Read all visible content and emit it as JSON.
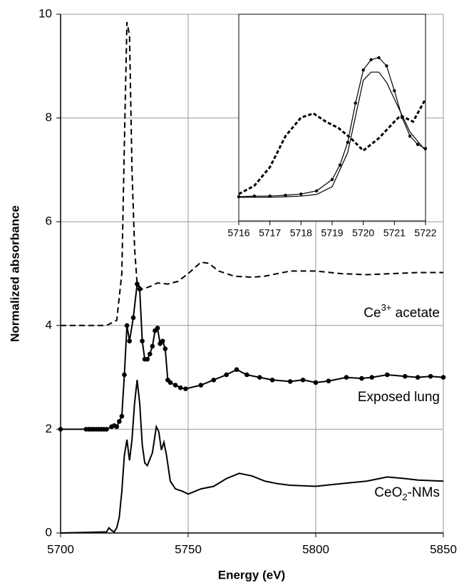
{
  "chart_data": [
    {
      "type": "line",
      "xlabel": "Energy (eV)",
      "ylabel": "Normalized absorbance",
      "xlim": [
        5700,
        5850
      ],
      "xticks": [
        5700,
        5750,
        5800,
        5850
      ],
      "ylim": [
        0,
        10
      ],
      "yticks": [
        0,
        2,
        4,
        6,
        8,
        10
      ],
      "grid": true,
      "series": [
        {
          "label": [
            "Ce",
            "3+",
            " acetate"
          ],
          "label_shift": "sup",
          "color": "#000000",
          "dashed": true,
          "markers": false,
          "x": [
            5700,
            5710,
            5718,
            5720,
            5722,
            5724,
            5725,
            5726,
            5727,
            5728,
            5729,
            5730,
            5732,
            5735,
            5738,
            5742,
            5746,
            5750,
            5755,
            5758,
            5762,
            5768,
            5775,
            5780,
            5790,
            5800,
            5810,
            5820,
            5830,
            5840,
            5850
          ],
          "values": [
            4.0,
            4.0,
            4.0,
            4.05,
            4.1,
            5.0,
            7.5,
            9.85,
            9.6,
            7.0,
            5.5,
            4.8,
            4.7,
            4.75,
            4.82,
            4.8,
            4.85,
            5.0,
            5.22,
            5.2,
            5.05,
            4.95,
            4.93,
            4.95,
            5.05,
            5.05,
            5.0,
            4.98,
            5.0,
            5.02,
            5.02
          ]
        },
        {
          "label": [
            "Exposed lung"
          ],
          "color": "#000000",
          "dashed": false,
          "markers": true,
          "x": [
            5700,
            5710,
            5711,
            5712,
            5713,
            5714,
            5715,
            5716,
            5717,
            5718,
            5720,
            5721,
            5722,
            5723,
            5724,
            5725,
            5726,
            5727,
            5728.5,
            5730,
            5731,
            5732,
            5733,
            5734,
            5735,
            5736,
            5737,
            5738,
            5739,
            5740,
            5741,
            5742,
            5743,
            5745,
            5747,
            5749,
            5755,
            5760,
            5765,
            5769,
            5773,
            5778,
            5783,
            5790,
            5795,
            5800,
            5805,
            5812,
            5818,
            5822,
            5828,
            5835,
            5840,
            5845,
            5850
          ],
          "values": [
            2.0,
            2.0,
            2.0,
            2.0,
            2.0,
            2.0,
            2.0,
            2.0,
            2.0,
            2.0,
            2.05,
            2.07,
            2.05,
            2.15,
            2.25,
            3.05,
            4.0,
            3.7,
            4.15,
            4.8,
            4.7,
            3.7,
            3.35,
            3.35,
            3.45,
            3.6,
            3.9,
            3.95,
            3.65,
            3.7,
            3.55,
            2.95,
            2.9,
            2.85,
            2.8,
            2.78,
            2.85,
            2.95,
            3.05,
            3.15,
            3.05,
            3.0,
            2.95,
            2.92,
            2.95,
            2.9,
            2.93,
            3.0,
            2.98,
            3.0,
            3.05,
            3.02,
            3.0,
            3.02,
            3.0
          ]
        },
        {
          "label": [
            "CeO",
            "2",
            "-NMs"
          ],
          "label_shift": "sub",
          "color": "#000000",
          "dashed": false,
          "markers": false,
          "x": [
            5700,
            5718,
            5719,
            5720,
            5721,
            5722,
            5723,
            5724,
            5725,
            5726,
            5727,
            5728,
            5729,
            5730,
            5731,
            5732,
            5733,
            5734,
            5736,
            5737.5,
            5738.5,
            5739.5,
            5740.5,
            5741.5,
            5743,
            5745,
            5748,
            5750,
            5755,
            5760,
            5765,
            5770,
            5775,
            5780,
            5785,
            5790,
            5800,
            5810,
            5820,
            5828,
            5835,
            5840,
            5850
          ],
          "values": [
            0,
            0.02,
            0.1,
            0.05,
            0.02,
            0.1,
            0.3,
            0.8,
            1.5,
            1.8,
            1.4,
            1.8,
            2.5,
            2.95,
            2.5,
            1.7,
            1.35,
            1.3,
            1.55,
            2.05,
            1.95,
            1.6,
            1.75,
            1.5,
            1.0,
            0.85,
            0.8,
            0.75,
            0.85,
            0.9,
            1.05,
            1.15,
            1.1,
            1.0,
            0.95,
            0.92,
            0.9,
            0.95,
            1.0,
            1.08,
            1.05,
            1.02,
            1.0
          ]
        }
      ]
    },
    {
      "type": "line",
      "xlim": [
        5716,
        5722
      ],
      "xticks": [
        5716,
        5717,
        5718,
        5719,
        5720,
        5721,
        5722
      ],
      "ylim": [
        0,
        1
      ],
      "series": [
        {
          "color": "#000000",
          "dashed": true,
          "width": 3,
          "markers": false,
          "x": [
            5716,
            5716.5,
            5717,
            5717.5,
            5718,
            5718.4,
            5718.8,
            5719.2,
            5719.6,
            5720,
            5720.5,
            5721,
            5721.2,
            5721.6,
            5722
          ],
          "values": [
            0.13,
            0.17,
            0.26,
            0.41,
            0.5,
            0.52,
            0.48,
            0.45,
            0.4,
            0.34,
            0.4,
            0.48,
            0.51,
            0.48,
            0.59
          ]
        },
        {
          "color": "#000000",
          "dashed": false,
          "width": 1.2,
          "markers": true,
          "x": [
            5716,
            5716.5,
            5717,
            5717.5,
            5718,
            5718.5,
            5719,
            5719.25,
            5719.5,
            5719.75,
            5720,
            5720.25,
            5720.5,
            5720.75,
            5721,
            5721.25,
            5721.5,
            5721.75,
            5722
          ],
          "values": [
            0.117,
            0.12,
            0.12,
            0.124,
            0.13,
            0.145,
            0.2,
            0.27,
            0.38,
            0.57,
            0.73,
            0.78,
            0.79,
            0.75,
            0.63,
            0.5,
            0.41,
            0.37,
            0.35
          ]
        },
        {
          "color": "#000000",
          "dashed": false,
          "width": 1.2,
          "markers": false,
          "x": [
            5716,
            5717,
            5717.5,
            5718,
            5718.5,
            5719,
            5719.5,
            5720,
            5720.25,
            5720.5,
            5720.75,
            5721,
            5721.5,
            5722
          ],
          "values": [
            0.114,
            0.114,
            0.117,
            0.12,
            0.128,
            0.165,
            0.33,
            0.68,
            0.72,
            0.72,
            0.67,
            0.59,
            0.43,
            0.34
          ]
        }
      ]
    }
  ]
}
